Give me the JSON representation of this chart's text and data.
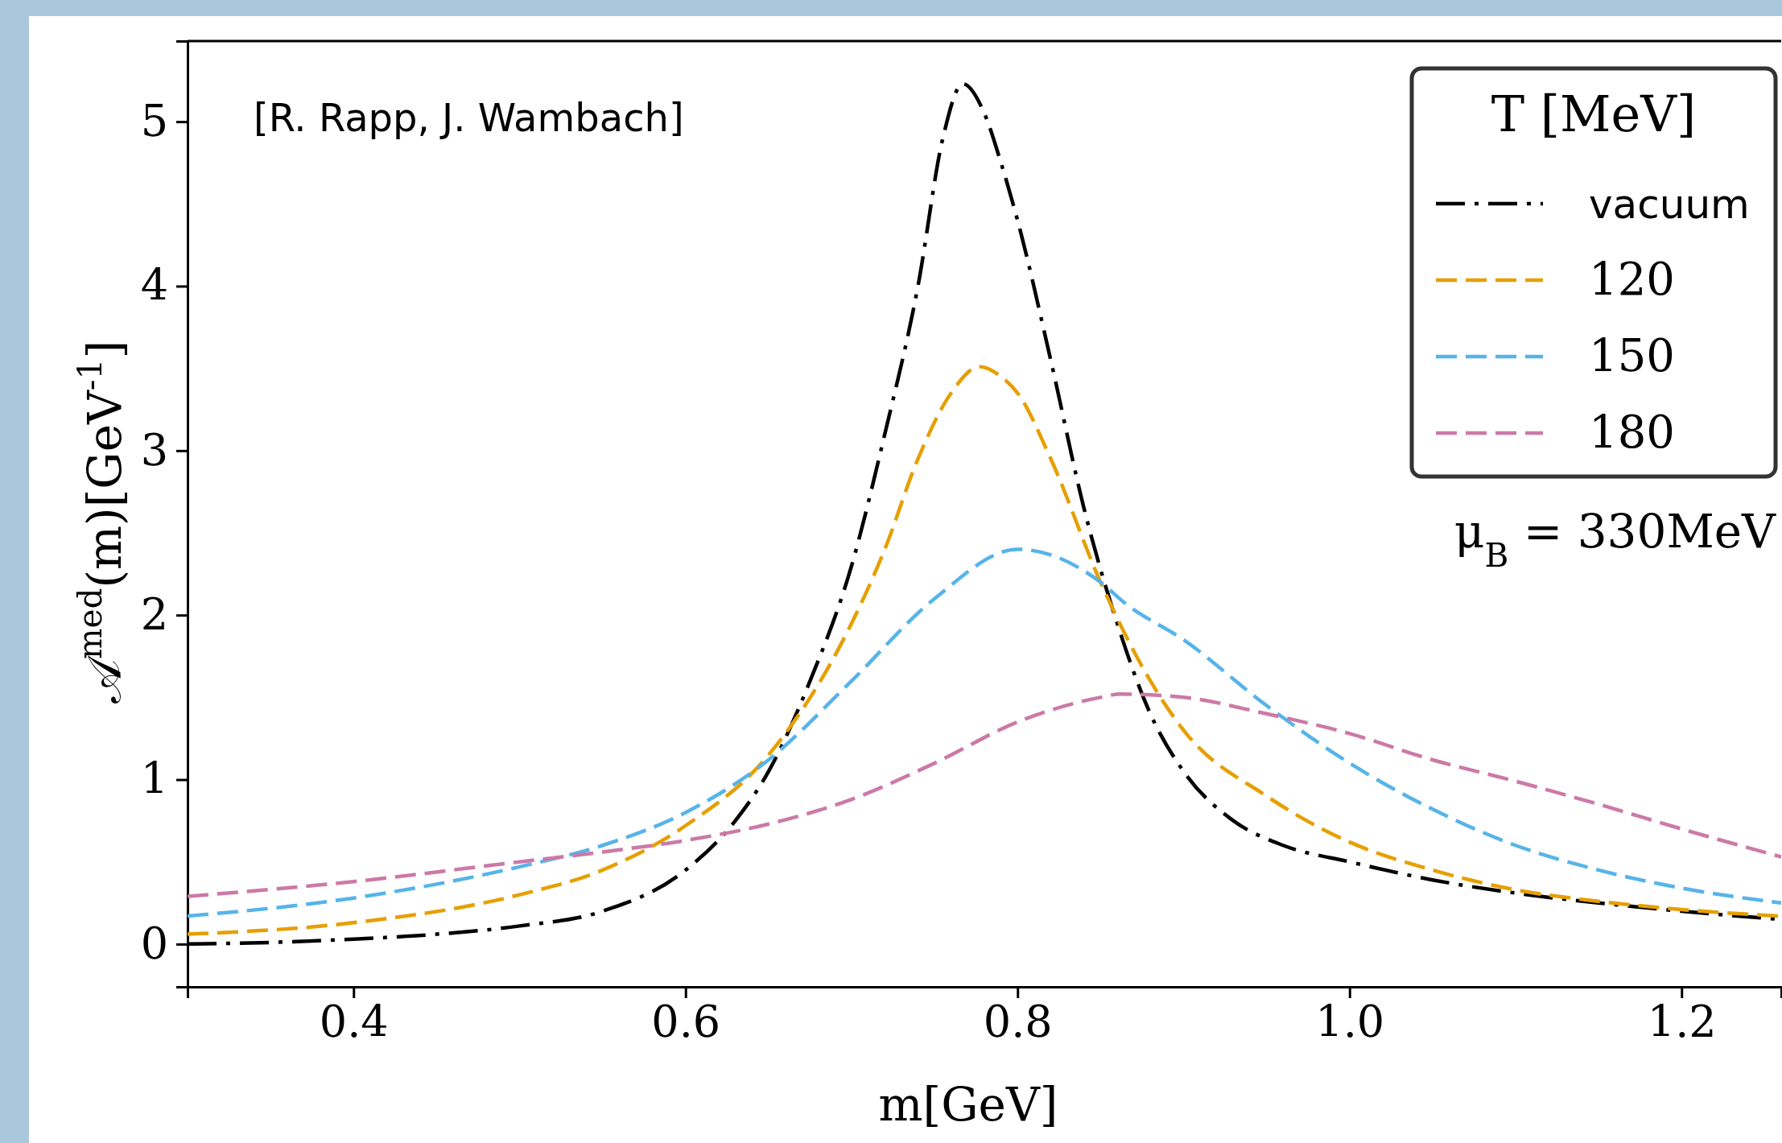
{
  "chart_data": {
    "type": "line",
    "xlabel": "m[GeV]",
    "ylabel": "𝒜$^{med}$(m)[GeV$^{-1}$]",
    "legend_title": "T [MeV]",
    "legend": "top right",
    "annotations": [
      "[R. Rapp, J. Wambach]",
      "μ$_{B}$ = 330MeV"
    ],
    "xlim": [
      0.3,
      1.26
    ],
    "ylim": [
      -0.26,
      5.49
    ],
    "xticks": [
      0.4,
      0.6,
      0.8,
      {
        "value": 1,
        "label": "1.0"
      },
      1.2
    ],
    "yticks": [
      0,
      1,
      2,
      3,
      4,
      5
    ],
    "grid": false,
    "marker": "none",
    "series": [
      {
        "name": "vacuum",
        "color": "#000000",
        "line_style": "dashdot",
        "x": [
          0.3,
          0.35,
          0.4,
          0.45,
          0.5,
          0.55,
          0.6,
          0.63,
          0.65,
          0.675,
          0.7,
          0.72,
          0.74,
          0.755,
          0.767,
          0.78,
          0.79,
          0.8,
          0.82,
          0.84,
          0.86,
          0.88,
          0.9,
          0.93,
          0.96,
          1.0,
          1.05,
          1.1,
          1.15,
          1.2,
          1.26
        ],
        "values": [
          0.0,
          0.01,
          0.03,
          0.06,
          0.11,
          0.2,
          0.45,
          0.75,
          1.05,
          1.6,
          2.3,
          3.1,
          4.0,
          4.9,
          5.23,
          5.05,
          4.75,
          4.4,
          3.55,
          2.65,
          1.95,
          1.4,
          1.05,
          0.75,
          0.6,
          0.5,
          0.39,
          0.31,
          0.25,
          0.2,
          0.15
        ]
      },
      {
        "name": "120",
        "color": "#e69f00",
        "line_style": "dashed",
        "x": [
          0.3,
          0.4,
          0.5,
          0.55,
          0.6,
          0.65,
          0.7,
          0.72,
          0.74,
          0.76,
          0.777,
          0.79,
          0.8,
          0.82,
          0.85,
          0.88,
          0.9,
          0.95,
          1.0,
          1.05,
          1.1,
          1.15,
          1.2,
          1.26
        ],
        "values": [
          0.06,
          0.13,
          0.3,
          0.45,
          0.72,
          1.15,
          1.95,
          2.4,
          2.95,
          3.35,
          3.51,
          3.45,
          3.35,
          2.95,
          2.2,
          1.6,
          1.3,
          0.9,
          0.62,
          0.45,
          0.33,
          0.26,
          0.21,
          0.17
        ]
      },
      {
        "name": "150",
        "color": "#56b4e9",
        "line_style": "dashed",
        "x": [
          0.3,
          0.4,
          0.5,
          0.55,
          0.6,
          0.65,
          0.7,
          0.75,
          0.8,
          0.85,
          0.865,
          0.9,
          0.95,
          1.0,
          1.05,
          1.1,
          1.15,
          1.2,
          1.26
        ],
        "values": [
          0.17,
          0.28,
          0.47,
          0.6,
          0.8,
          1.12,
          1.6,
          2.1,
          2.4,
          2.2,
          2.07,
          1.85,
          1.45,
          1.1,
          0.82,
          0.6,
          0.45,
          0.34,
          0.25
        ]
      },
      {
        "name": "180",
        "color": "#cc79a7",
        "line_style": "dashed",
        "x": [
          0.3,
          0.4,
          0.5,
          0.55,
          0.6,
          0.65,
          0.7,
          0.75,
          0.8,
          0.85,
          0.862,
          0.9,
          0.95,
          1.0,
          1.05,
          1.1,
          1.15,
          1.2,
          1.26
        ],
        "values": [
          0.29,
          0.38,
          0.5,
          0.56,
          0.63,
          0.73,
          0.88,
          1.1,
          1.35,
          1.5,
          1.52,
          1.5,
          1.4,
          1.28,
          1.12,
          0.99,
          0.85,
          0.7,
          0.53
        ]
      }
    ]
  }
}
